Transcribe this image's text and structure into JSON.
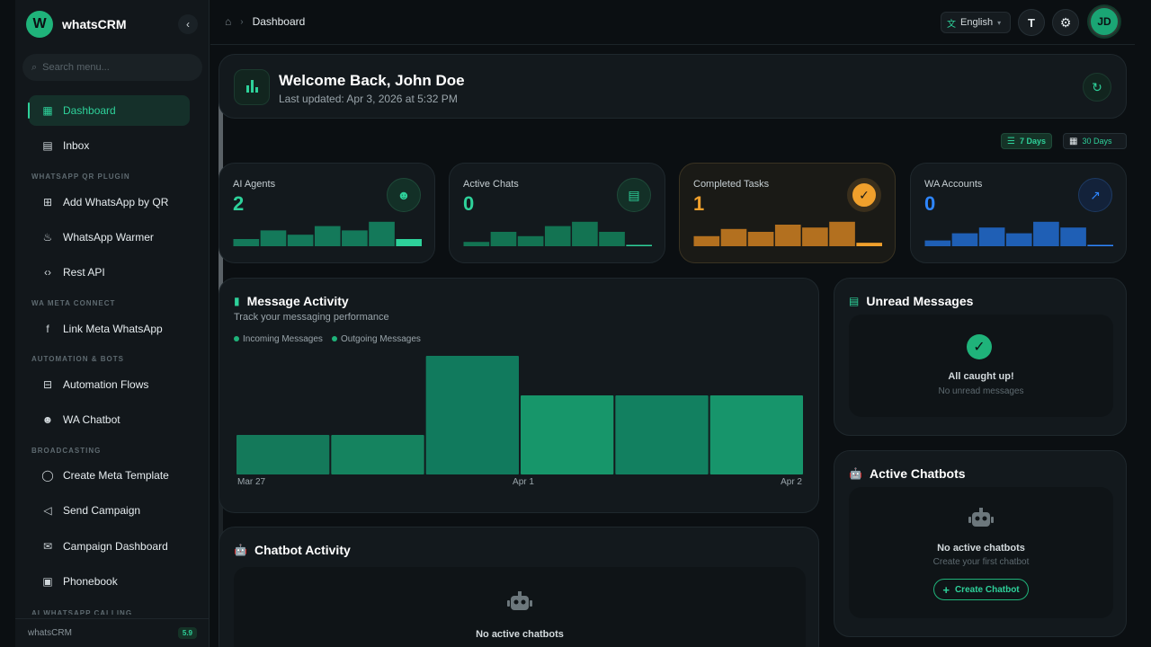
{
  "app": {
    "name": "whatsCRM",
    "logo_letter": "W",
    "version": "5.9"
  },
  "search": {
    "placeholder": "Search menu..."
  },
  "nav": [
    {
      "label": "Dashboard",
      "icon": "dashboard-icon",
      "active": true
    },
    {
      "label": "Inbox",
      "icon": "inbox-icon"
    },
    {
      "section": "WHATSAPP QR PLUGIN"
    },
    {
      "label": "Add WhatsApp by QR",
      "icon": "qr-icon"
    },
    {
      "label": "WhatsApp Warmer",
      "icon": "flame-icon"
    },
    {
      "label": "Rest API",
      "icon": "code-icon"
    },
    {
      "section": "WA META CONNECT"
    },
    {
      "label": "Link Meta WhatsApp",
      "icon": "facebook-icon"
    },
    {
      "section": "AUTOMATION & BOTS"
    },
    {
      "label": "Automation Flows",
      "icon": "flow-icon"
    },
    {
      "label": "WA Chatbot",
      "icon": "robot-icon"
    },
    {
      "section": "BROADCASTING"
    },
    {
      "label": "Create Meta Template",
      "icon": "whatsapp-icon"
    },
    {
      "label": "Send Campaign",
      "icon": "megaphone-icon"
    },
    {
      "label": "Campaign Dashboard",
      "icon": "mail-chart-icon"
    },
    {
      "label": "Phonebook",
      "icon": "contacts-icon"
    },
    {
      "section": "AI WHATSAPP CALLING"
    }
  ],
  "footer": {
    "label": "whatsCRM"
  },
  "topbar": {
    "breadcrumb": "Dashboard",
    "language": "English",
    "avatar_initials": "JD"
  },
  "welcome": {
    "title": "Welcome Back, John Doe",
    "subtitle": "Last updated: Apr 3, 2026 at 5:32 PM"
  },
  "ranges": {
    "selected": "7 Days",
    "other": "30 Days"
  },
  "stats": [
    {
      "label": "AI Agents",
      "value": "2",
      "color": "#2ed19a",
      "bar_color": "#14795a",
      "bars": [
        0.25,
        0.55,
        0.4,
        0.7,
        0.55,
        0.85,
        0.25
      ],
      "icon": "robot-icon"
    },
    {
      "label": "Active Chats",
      "value": "0",
      "color": "#2ed19a",
      "bar_color": "#137352",
      "bars": [
        0.15,
        0.5,
        0.35,
        0.7,
        0.85,
        0.5,
        0.03
      ],
      "icon": "chat-icon"
    },
    {
      "label": "Completed Tasks",
      "value": "1",
      "color": "#f0a02c",
      "bar_color": "#b3701f",
      "bars": [
        0.35,
        0.6,
        0.5,
        0.75,
        0.65,
        0.85,
        0.12
      ],
      "icon": "check-circle-icon"
    },
    {
      "label": "WA Accounts",
      "value": "0",
      "color": "#2e86ff",
      "bar_color": "#1f5fb5",
      "bars": [
        0.2,
        0.45,
        0.65,
        0.45,
        0.85,
        0.65,
        0.03
      ],
      "icon": "trend-icon"
    }
  ],
  "message_activity": {
    "title": "Message Activity",
    "subtitle": "Track your messaging performance",
    "legend": [
      "Incoming Messages",
      "Outgoing Messages"
    ],
    "x_labels": [
      "Mar 27",
      "Apr 1",
      "Apr 2"
    ]
  },
  "chart_data": {
    "type": "bar",
    "categories": [
      "",
      "",
      "",
      "",
      "",
      ""
    ],
    "values": [
      1,
      1,
      3,
      2,
      2,
      2
    ],
    "ylim": [
      0,
      3
    ],
    "grid": false
  },
  "chatbot_activity": {
    "title": "Chatbot Activity",
    "empty_title": "No active chatbots"
  },
  "unread": {
    "title": "Unread Messages",
    "empty_title": "All caught up!",
    "empty_sub": "No unread messages"
  },
  "active_chatbots": {
    "title": "Active Chatbots",
    "empty_title": "No active chatbots",
    "empty_sub": "Create your first chatbot",
    "button": "Create Chatbot"
  }
}
